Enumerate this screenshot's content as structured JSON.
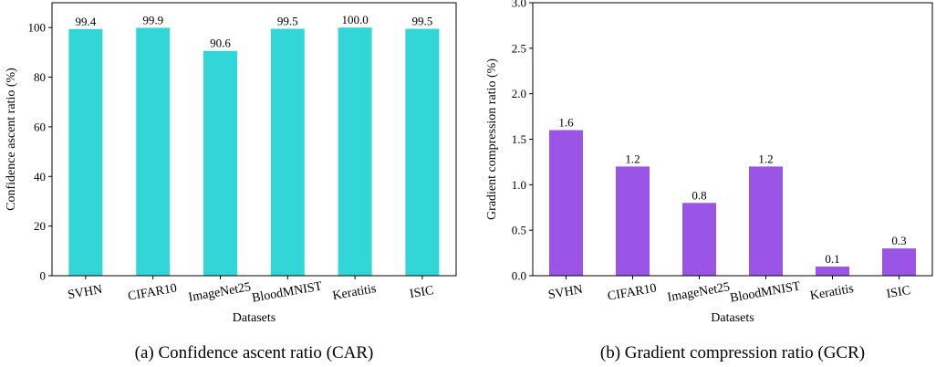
{
  "chart_data": [
    {
      "type": "bar",
      "caption": "(a)  Confidence ascent ratio (CAR)",
      "xlabel": "Datasets",
      "ylabel": "Confidence ascent ratio (%)",
      "categories": [
        "SVHN",
        "CIFAR10",
        "ImageNet25",
        "BloodMNIST",
        "Keratitis",
        "ISIC"
      ],
      "values": [
        99.4,
        99.9,
        90.6,
        99.5,
        100.0,
        99.5
      ],
      "value_labels": [
        "99.4",
        "99.9",
        "90.6",
        "99.5",
        "100.0",
        "99.5"
      ],
      "ylim": [
        0,
        110
      ],
      "yticks": [
        0,
        20,
        40,
        60,
        80,
        100
      ],
      "ytick_labels": [
        "0",
        "20",
        "40",
        "60",
        "80",
        "100"
      ],
      "color": "#33d6d6",
      "grid": false
    },
    {
      "type": "bar",
      "caption": "(b)  Gradient compression ratio (GCR)",
      "xlabel": "Datasets",
      "ylabel": "Gradient compression ratio (%)",
      "categories": [
        "SVHN",
        "CIFAR10",
        "ImageNet25",
        "BloodMNIST",
        "Keratitis",
        "ISIC"
      ],
      "values": [
        1.6,
        1.2,
        0.8,
        1.2,
        0.1,
        0.3
      ],
      "value_labels": [
        "1.6",
        "1.2",
        "0.8",
        "1.2",
        "0.1",
        "0.3"
      ],
      "ylim": [
        0,
        3.0
      ],
      "yticks": [
        0,
        0.5,
        1.0,
        1.5,
        2.0,
        2.5,
        3.0
      ],
      "ytick_labels": [
        "0.0",
        "0.5",
        "1.0",
        "1.5",
        "2.0",
        "2.5",
        "3.0"
      ],
      "color": "#9b55e6",
      "grid": false
    }
  ]
}
